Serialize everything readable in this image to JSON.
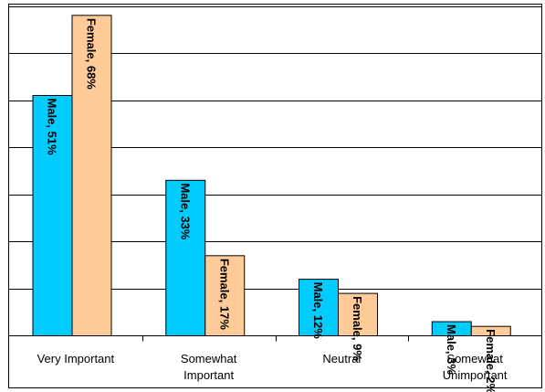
{
  "chart_data": {
    "type": "bar",
    "categories": [
      [
        "Very Important"
      ],
      [
        "Somewhat",
        "Important"
      ],
      [
        "Neutral"
      ],
      [
        "Somewhat",
        "Unimportant"
      ]
    ],
    "series": [
      {
        "name": "Male",
        "values": [
          51,
          33,
          12,
          3
        ],
        "data_labels": [
          "Male, 51%",
          "Male, 33%",
          "Male, 12%",
          "Male, 3%"
        ],
        "color": "#00ccff"
      },
      {
        "name": "Female",
        "values": [
          68,
          17,
          9,
          2
        ],
        "data_labels": [
          "Female, 68%",
          "Female, 17%",
          "Female, 9%",
          "Female, 2%"
        ],
        "color": "#ffcc99"
      }
    ],
    "ylim": [
      0,
      70
    ],
    "y_gridline_step": 10,
    "grid": true,
    "legend": "none",
    "title": "",
    "xlabel": "",
    "ylabel": ""
  }
}
